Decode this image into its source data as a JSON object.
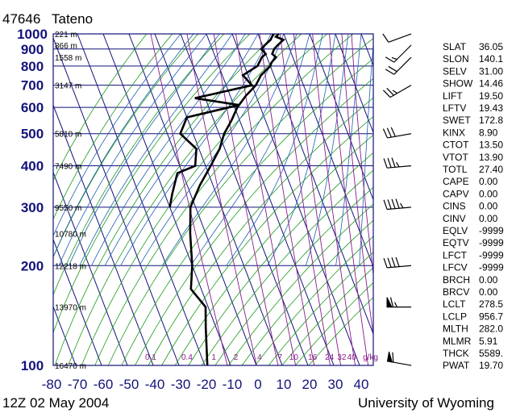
{
  "header": {
    "station_id": "47646",
    "station_name": "Tateno",
    "time_label": "12Z 02 May 2004",
    "credit": "University of Wyoming"
  },
  "chart_data": {
    "type": "line",
    "title": "",
    "xlabel": "",
    "ylabel": "",
    "x_axis": {
      "ticks": [
        -80,
        -70,
        -60,
        -50,
        -40,
        -30,
        -20,
        -10,
        0,
        10,
        20,
        30,
        40
      ],
      "tick_labels": [
        "-80",
        "-70",
        "-60",
        "-50",
        "-40",
        "-30",
        "-20",
        "-10",
        "0",
        "10",
        "20",
        "30",
        "40"
      ],
      "xlim": [
        -80,
        40
      ],
      "note": "skewed temperature (C)"
    },
    "y_axis": {
      "scale": "log",
      "ticks": [
        100,
        200,
        300,
        400,
        500,
        600,
        700,
        800,
        900,
        1000
      ],
      "tick_labels": [
        "100",
        "200",
        "300",
        "400",
        "500",
        "600",
        "700",
        "800",
        "900",
        "1000"
      ],
      "ylim": [
        1000,
        100
      ]
    },
    "height_labels": [
      {
        "p": 100,
        "text": "16470 m"
      },
      {
        "p": 150,
        "text": "13970 m"
      },
      {
        "p": 200,
        "text": "12218 m"
      },
      {
        "p": 250,
        "text": "10780 m"
      },
      {
        "p": 300,
        "text": "9550 m"
      },
      {
        "p": 400,
        "text": "7490 m"
      },
      {
        "p": 500,
        "text": "5810 m"
      },
      {
        "p": 700,
        "text": "3147 m"
      },
      {
        "p": 850,
        "text": "1558 m"
      },
      {
        "p": 925,
        "text": "866 m"
      },
      {
        "p": 1000,
        "text": "221 m"
      }
    ],
    "mixing_ratio_labels": [
      "0.1",
      "0.4",
      "1",
      "2",
      "4",
      "7",
      "10",
      "16",
      "24",
      "32",
      "40",
      "g/kg"
    ],
    "series": [
      {
        "name": "",
        "color": "#000000",
        "points": [
          {
            "p": 1000,
            "t": 8.0
          },
          {
            "p": 980,
            "t": 6.5
          },
          {
            "p": 960,
            "t": 9.0
          },
          {
            "p": 925,
            "t": 6.0
          },
          {
            "p": 900,
            "t": 4.0
          },
          {
            "p": 870,
            "t": 2.5
          },
          {
            "p": 850,
            "t": 3.5
          },
          {
            "p": 820,
            "t": 1.0
          },
          {
            "p": 800,
            "t": 0.0
          },
          {
            "p": 750,
            "t": -5.0
          },
          {
            "p": 700,
            "t": -8.5
          },
          {
            "p": 650,
            "t": -14.0
          },
          {
            "p": 600,
            "t": -19.0
          },
          {
            "p": 550,
            "t": -23.0
          },
          {
            "p": 500,
            "t": -28.0
          },
          {
            "p": 450,
            "t": -32.0
          },
          {
            "p": 400,
            "t": -38.0
          },
          {
            "p": 350,
            "t": -45.0
          },
          {
            "p": 300,
            "t": -52.0
          },
          {
            "p": 250,
            "t": -56.0
          },
          {
            "p": 200,
            "t": -60.0
          },
          {
            "p": 170,
            "t": -64.0
          },
          {
            "p": 150,
            "t": -61.0
          },
          {
            "p": 130,
            "t": -64.0
          },
          {
            "p": 100,
            "t": -69.0
          }
        ]
      },
      {
        "name": "",
        "color": "#000000",
        "points": [
          {
            "p": 1000,
            "t": 6.0
          },
          {
            "p": 980,
            "t": 5.0
          },
          {
            "p": 960,
            "t": 4.0
          },
          {
            "p": 925,
            "t": 1.0
          },
          {
            "p": 900,
            "t": -1.0
          },
          {
            "p": 870,
            "t": 0.0
          },
          {
            "p": 850,
            "t": -2.0
          },
          {
            "p": 800,
            "t": -5.0
          },
          {
            "p": 750,
            "t": -12.0
          },
          {
            "p": 700,
            "t": -10.0
          },
          {
            "p": 640,
            "t": -34.0
          },
          {
            "p": 610,
            "t": -18.0
          },
          {
            "p": 560,
            "t": -40.0
          },
          {
            "p": 500,
            "t": -45.0
          },
          {
            "p": 450,
            "t": -41.0
          },
          {
            "p": 400,
            "t": -44.0
          },
          {
            "p": 380,
            "t": -52.0
          },
          {
            "p": 330,
            "t": -57.0
          },
          {
            "p": 300,
            "t": -60.0
          }
        ]
      }
    ],
    "wind_barbs": [
      {
        "p": 1000,
        "dir": 250,
        "spd": 10
      },
      {
        "p": 925,
        "dir": 225,
        "spd": 15
      },
      {
        "p": 850,
        "dir": 225,
        "spd": 20
      },
      {
        "p": 700,
        "dir": 240,
        "spd": 25
      },
      {
        "p": 500,
        "dir": 260,
        "spd": 30
      },
      {
        "p": 400,
        "dir": 265,
        "spd": 35
      },
      {
        "p": 300,
        "dir": 265,
        "spd": 45
      },
      {
        "p": 200,
        "dir": 265,
        "spd": 40
      },
      {
        "p": 150,
        "dir": 270,
        "spd": 65
      },
      {
        "p": 100,
        "dir": 280,
        "spd": 60
      }
    ],
    "indices": [
      {
        "name": "SLAT",
        "value": "36.05"
      },
      {
        "name": "SLON",
        "value": "140.1"
      },
      {
        "name": "SELV",
        "value": "31.00"
      },
      {
        "name": "SHOW",
        "value": "14.46"
      },
      {
        "name": "LIFT",
        "value": "19.50"
      },
      {
        "name": "LFTV",
        "value": "19.43"
      },
      {
        "name": "SWET",
        "value": "172.8"
      },
      {
        "name": "KINX",
        "value": "8.90"
      },
      {
        "name": "CTOT",
        "value": "13.50"
      },
      {
        "name": "VTOT",
        "value": "13.90"
      },
      {
        "name": "TOTL",
        "value": "27.40"
      },
      {
        "name": "CAPE",
        "value": "0.00"
      },
      {
        "name": "CAPV",
        "value": "0.00"
      },
      {
        "name": "CINS",
        "value": "0.00"
      },
      {
        "name": "CINV",
        "value": "0.00"
      },
      {
        "name": "EQLV",
        "value": "-9999"
      },
      {
        "name": "EQTV",
        "value": "-9999"
      },
      {
        "name": "LFCT",
        "value": "-9999"
      },
      {
        "name": "LFCV",
        "value": "-9999"
      },
      {
        "name": "BRCH",
        "value": "0.00"
      },
      {
        "name": "BRCV",
        "value": "0.00"
      },
      {
        "name": "LCLT",
        "value": "278.5"
      },
      {
        "name": "LCLP",
        "value": "956.7"
      },
      {
        "name": "MLTH",
        "value": "282.0"
      },
      {
        "name": "MLMR",
        "value": "5.91"
      },
      {
        "name": "THCK",
        "value": "5589."
      },
      {
        "name": "PWAT",
        "value": "19.70"
      }
    ],
    "colors": {
      "frame": "#12127a",
      "isotherm": "#12127a",
      "dry_adiabat": "#1a9a1a",
      "moist_adiabat": "#1f5fb0",
      "mixing_ratio": "#8b1a8b",
      "profile": "#000000"
    },
    "grid": true
  }
}
